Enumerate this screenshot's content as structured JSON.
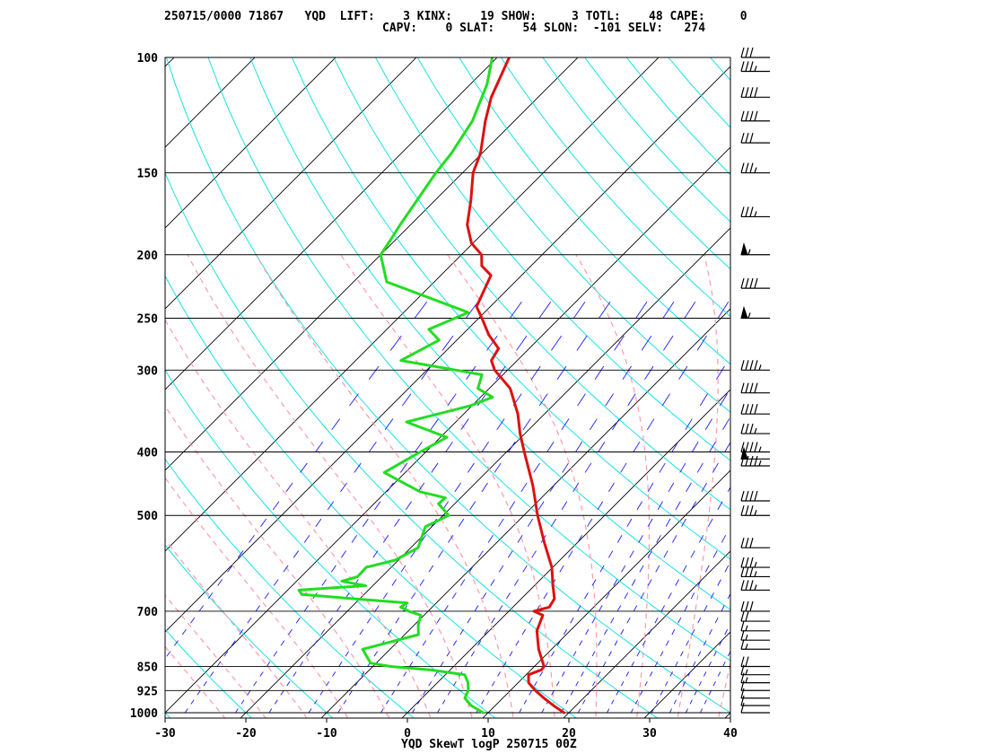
{
  "header": {
    "line1": "250715/0000 71867   YQD  LIFT:    3 KINX:    19 SHOW:     3 TOTL:    48 CAPE:     0",
    "line2": "CAPV:    0 SLAT:    54 SLON:  -101 SELV:   274"
  },
  "footer_title": "YQD SkewT logP 250715 00Z",
  "chart_data": {
    "type": "line",
    "title": "YQD SkewT logP 250715 00Z",
    "x_axis": {
      "label": "",
      "min": -30,
      "max": 40,
      "ticks": [
        -30,
        -20,
        -10,
        0,
        10,
        20,
        30,
        40
      ]
    },
    "y_axis": {
      "label": "",
      "scale": "log",
      "min": 1000,
      "max": 100,
      "ticks": [
        100,
        150,
        200,
        250,
        300,
        400,
        500,
        700,
        850,
        925,
        1000
      ]
    },
    "grid": true,
    "series": [
      {
        "role": "temperature",
        "color": "#dd1111",
        "points": [
          [
            1000,
            19.4
          ],
          [
            975,
            17.2
          ],
          [
            950,
            15.1
          ],
          [
            925,
            13.1
          ],
          [
            900,
            11.3
          ],
          [
            875,
            10.3
          ],
          [
            860,
            11.3
          ],
          [
            850,
            11.2
          ],
          [
            800,
            8.4
          ],
          [
            750,
            5.9
          ],
          [
            710,
            4.7
          ],
          [
            700,
            3.1
          ],
          [
            690,
            4.5
          ],
          [
            670,
            4.1
          ],
          [
            640,
            2.3
          ],
          [
            600,
            -0.1
          ],
          [
            550,
            -4.1
          ],
          [
            500,
            -8.3
          ],
          [
            450,
            -12.6
          ],
          [
            400,
            -17.8
          ],
          [
            375,
            -20.6
          ],
          [
            350,
            -23.3
          ],
          [
            320,
            -27.4
          ],
          [
            300,
            -31.6
          ],
          [
            290,
            -33.2
          ],
          [
            278,
            -33.8
          ],
          [
            265,
            -36.7
          ],
          [
            250,
            -39.6
          ],
          [
            240,
            -41.7
          ],
          [
            215,
            -43.8
          ],
          [
            208,
            -46.1
          ],
          [
            200,
            -47.5
          ],
          [
            192,
            -50.2
          ],
          [
            180,
            -53.0
          ],
          [
            165,
            -55.6
          ],
          [
            150,
            -58.7
          ],
          [
            140,
            -60.2
          ],
          [
            125,
            -63.6
          ],
          [
            115,
            -65.8
          ],
          [
            100,
            -68.5
          ]
        ]
      },
      {
        "role": "dewpoint",
        "color": "#22dd22",
        "points": [
          [
            1000,
            9.4
          ],
          [
            975,
            7.0
          ],
          [
            950,
            5.3
          ],
          [
            925,
            4.8
          ],
          [
            900,
            3.8
          ],
          [
            875,
            2.4
          ],
          [
            860,
            -2.5
          ],
          [
            850,
            -7.8
          ],
          [
            840,
            -10.7
          ],
          [
            800,
            -13.4
          ],
          [
            760,
            -8.3
          ],
          [
            735,
            -9.5
          ],
          [
            710,
            -10.4
          ],
          [
            700,
            -12.4
          ],
          [
            690,
            -13.9
          ],
          [
            680,
            -13.6
          ],
          [
            670,
            -20.8
          ],
          [
            660,
            -27.7
          ],
          [
            650,
            -28.6
          ],
          [
            640,
            -20.9
          ],
          [
            630,
            -24.4
          ],
          [
            620,
            -23.0
          ],
          [
            600,
            -23.1
          ],
          [
            585,
            -20.4
          ],
          [
            560,
            -19.1
          ],
          [
            520,
            -20.8
          ],
          [
            500,
            -19.3
          ],
          [
            480,
            -22.0
          ],
          [
            470,
            -21.9
          ],
          [
            460,
            -25.8
          ],
          [
            430,
            -32.6
          ],
          [
            400,
            -30.7
          ],
          [
            380,
            -29.2
          ],
          [
            360,
            -36.1
          ],
          [
            340,
            -30.2
          ],
          [
            330,
            -28.5
          ],
          [
            320,
            -31.4
          ],
          [
            305,
            -32.6
          ],
          [
            300,
            -36.4
          ],
          [
            290,
            -44.4
          ],
          [
            270,
            -42.2
          ],
          [
            260,
            -44.8
          ],
          [
            245,
            -42.0
          ],
          [
            220,
            -55.9
          ],
          [
            200,
            -60.0
          ],
          [
            190,
            -60.6
          ],
          [
            180,
            -61.3
          ],
          [
            150,
            -63.3
          ],
          [
            140,
            -63.8
          ],
          [
            125,
            -65.2
          ],
          [
            110,
            -67.9
          ],
          [
            100,
            -70.6
          ]
        ]
      }
    ],
    "wind_barbs": [
      {
        "p": 1000,
        "kt": 10
      },
      {
        "p": 975,
        "kt": 10
      },
      {
        "p": 950,
        "kt": 10
      },
      {
        "p": 925,
        "kt": 10
      },
      {
        "p": 900,
        "kt": 15
      },
      {
        "p": 875,
        "kt": 15
      },
      {
        "p": 850,
        "kt": 20
      },
      {
        "p": 800,
        "kt": 15
      },
      {
        "p": 775,
        "kt": 15
      },
      {
        "p": 750,
        "kt": 15
      },
      {
        "p": 725,
        "kt": 20
      },
      {
        "p": 700,
        "kt": 30
      },
      {
        "p": 650,
        "kt": 35
      },
      {
        "p": 620,
        "kt": 35
      },
      {
        "p": 600,
        "kt": 35
      },
      {
        "p": 560,
        "kt": 30
      },
      {
        "p": 500,
        "kt": 35
      },
      {
        "p": 475,
        "kt": 40
      },
      {
        "p": 420,
        "kt": 45
      },
      {
        "p": 410,
        "kt": 50
      },
      {
        "p": 400,
        "kt": 45
      },
      {
        "p": 375,
        "kt": 35
      },
      {
        "p": 350,
        "kt": 40
      },
      {
        "p": 325,
        "kt": 40
      },
      {
        "p": 300,
        "kt": 45
      },
      {
        "p": 250,
        "kt": 55
      },
      {
        "p": 225,
        "kt": 40
      },
      {
        "p": 200,
        "kt": 55
      },
      {
        "p": 175,
        "kt": 35
      },
      {
        "p": 150,
        "kt": 35
      },
      {
        "p": 135,
        "kt": 30
      },
      {
        "p": 125,
        "kt": 40
      },
      {
        "p": 115,
        "kt": 40
      },
      {
        "p": 105,
        "kt": 35
      },
      {
        "p": 100,
        "kt": 30
      }
    ],
    "colors": {
      "isotherm": "#000000",
      "isobar": "#000000",
      "dry_adiabat": "#00e0e0",
      "moist_adiabat": "#ff9aaa",
      "mixing_ratio": "#1a1aff",
      "frame": "#000000"
    }
  }
}
